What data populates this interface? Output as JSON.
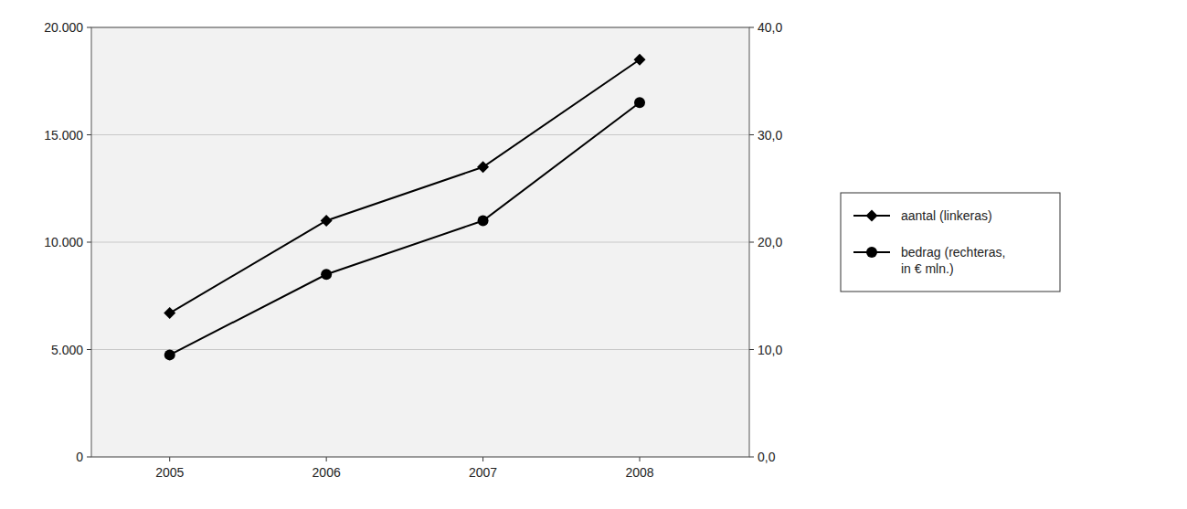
{
  "chart_data": {
    "type": "line",
    "x": [
      2005,
      2006,
      2007,
      2008
    ],
    "xlim": [
      2004.5,
      2008.7
    ],
    "xticks": [
      2005,
      2006,
      2007,
      2008
    ],
    "ylim": [
      0,
      20000
    ],
    "yticks": [
      0,
      {
        "value": 5000,
        "label": "5.000"
      },
      {
        "value": 10000,
        "label": "10.000"
      },
      {
        "value": 15000,
        "label": "15.000"
      },
      {
        "value": 20000,
        "label": "20.000"
      }
    ],
    "y2lim": [
      0,
      40.0
    ],
    "y2ticks": [
      {
        "value": 0.0,
        "label": "0,0"
      },
      {
        "value": 10.0,
        "label": "10,0"
      },
      {
        "value": 20.0,
        "label": "20,0"
      },
      {
        "value": 30.0,
        "label": "30,0"
      },
      {
        "value": 40.0,
        "label": "40,0"
      }
    ],
    "grid": true,
    "legend": "right",
    "series": [
      {
        "name": "aantal (linkeras)",
        "color": "#000000",
        "marker": "diamond",
        "values": [
          6700,
          11000,
          13500,
          18500
        ]
      },
      {
        "name": "bedrag (rechteras,\nin € mln.)",
        "color": "#000000",
        "marker": "circle",
        "axis": "y2",
        "values": [
          9.5,
          17.0,
          22.0,
          33.0
        ]
      }
    ]
  }
}
